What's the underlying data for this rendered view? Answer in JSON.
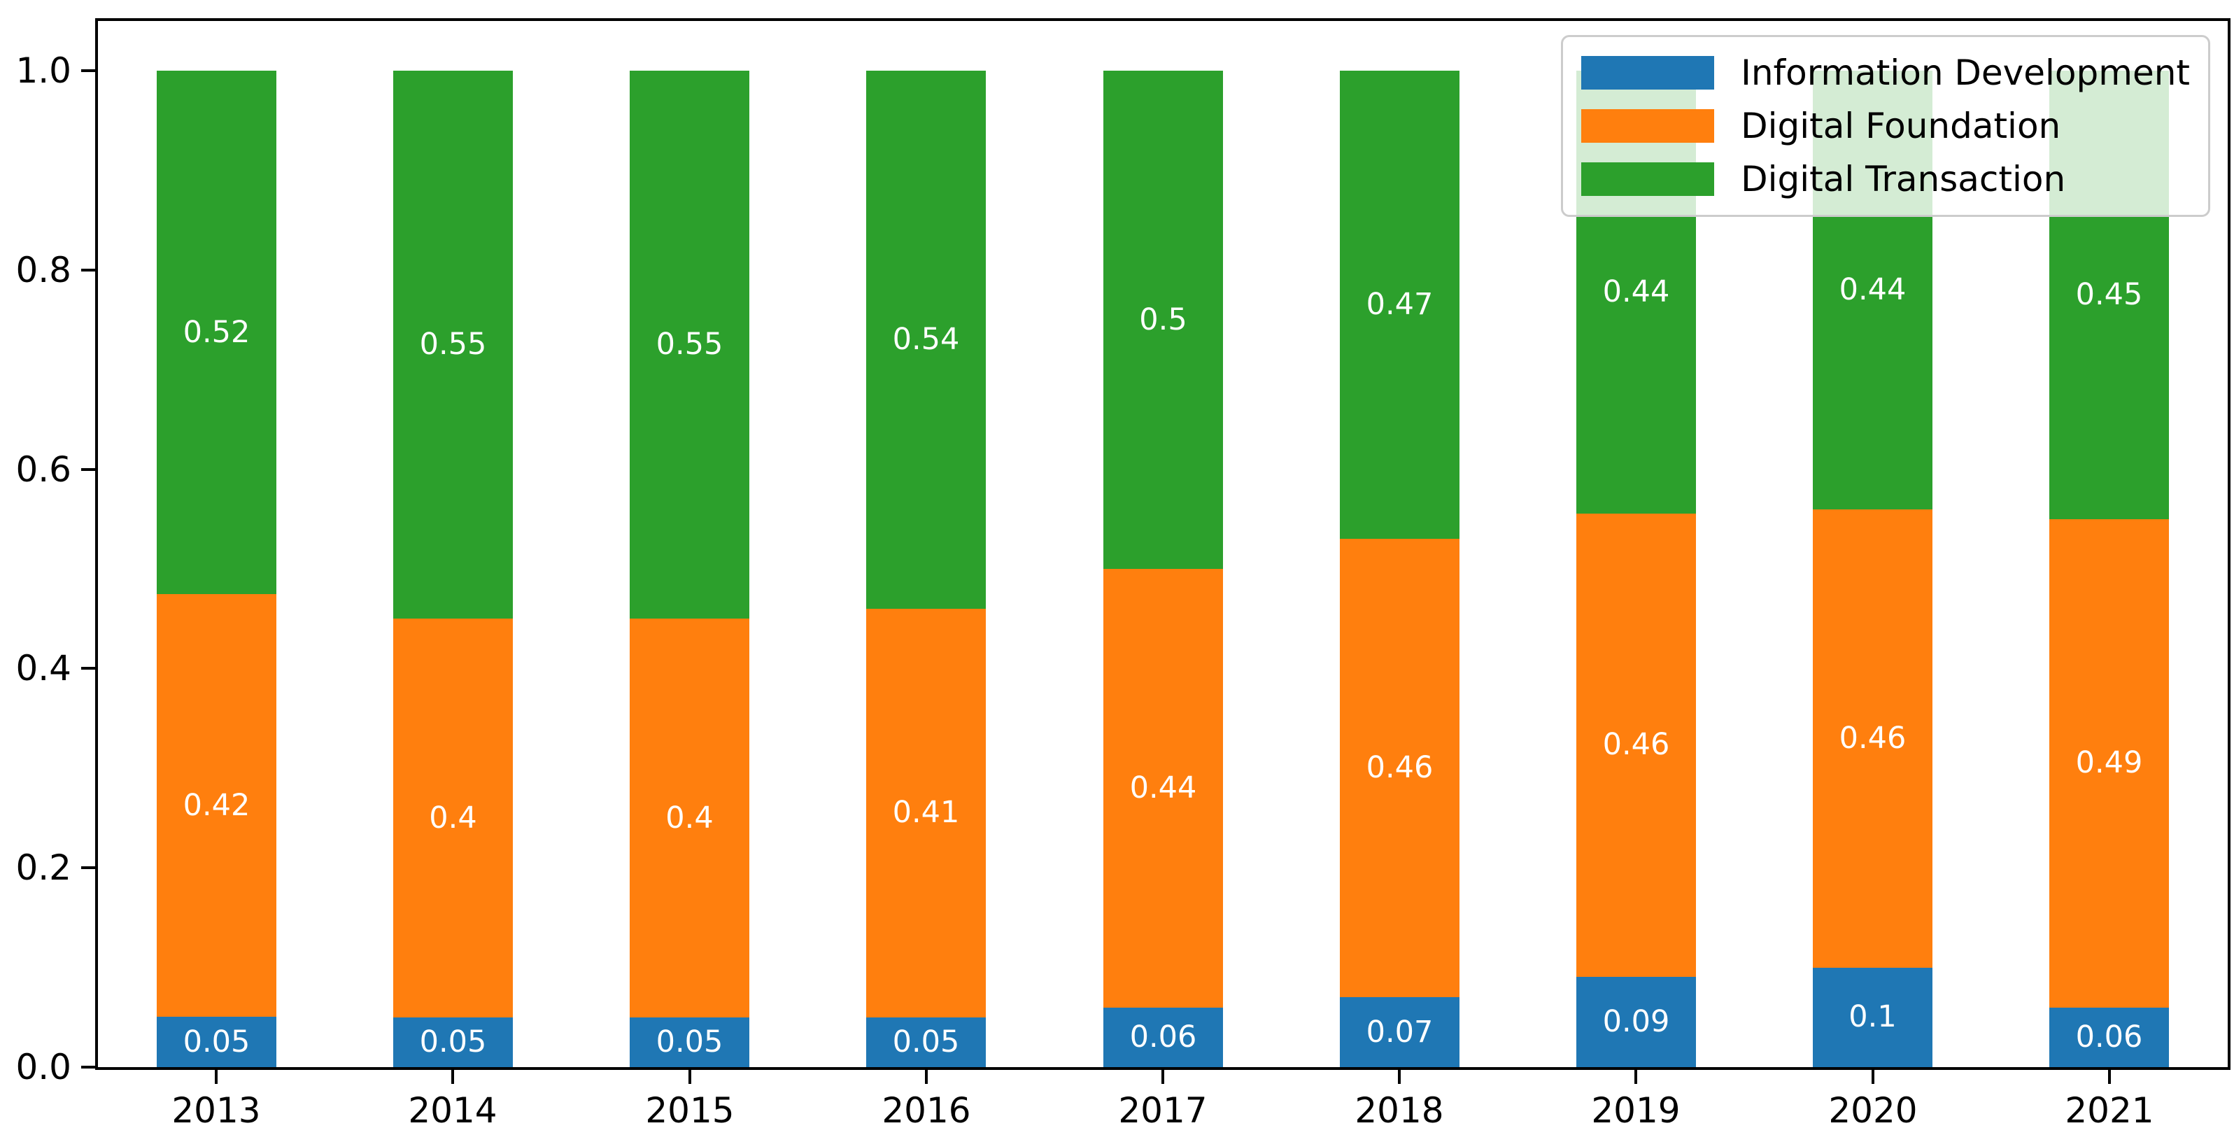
{
  "chart_data": {
    "type": "bar",
    "stacked": true,
    "title": "",
    "xlabel": "",
    "ylabel": "",
    "categories": [
      "2013",
      "2014",
      "2015",
      "2016",
      "2017",
      "2018",
      "2019",
      "2020",
      "2021"
    ],
    "series": [
      {
        "name": "Information Development",
        "color": "#1f77b4",
        "values": [
          0.05,
          0.05,
          0.05,
          0.05,
          0.06,
          0.07,
          0.09,
          0.1,
          0.06
        ]
      },
      {
        "name": "Digital Foundation",
        "color": "#ff7f0e",
        "values": [
          0.42,
          0.4,
          0.4,
          0.41,
          0.44,
          0.46,
          0.46,
          0.46,
          0.49
        ]
      },
      {
        "name": "Digital Transaction",
        "color": "#2ca02c",
        "values": [
          0.52,
          0.55,
          0.55,
          0.54,
          0.5,
          0.47,
          0.44,
          0.44,
          0.45
        ]
      }
    ],
    "bar_value_labels": true,
    "bar_label_color": "#ffffff",
    "ylim": [
      0,
      1.05
    ],
    "yticks": [
      "0.0",
      "0.2",
      "0.4",
      "0.6",
      "0.8",
      "1.0"
    ],
    "grid": false,
    "legend_position": "upper right"
  },
  "colors": {
    "axis": "#000000",
    "background": "#ffffff",
    "legend_border": "#cccccc",
    "legend_background": "rgba(255,255,255,0.8)"
  }
}
